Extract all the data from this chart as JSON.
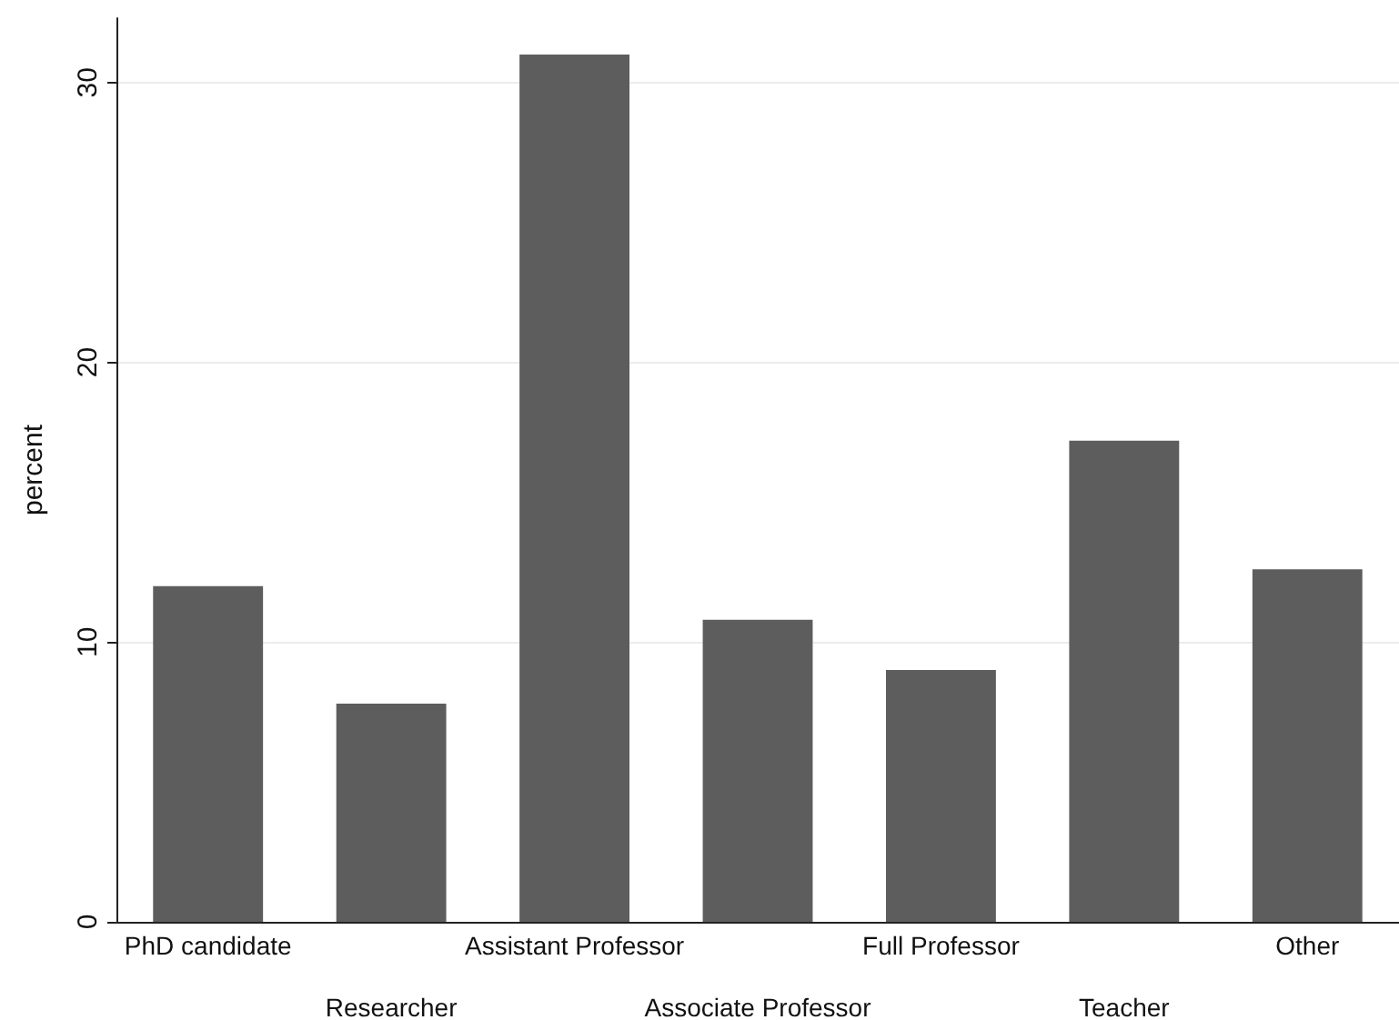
{
  "chart_data": {
    "type": "bar",
    "ylabel": "percent",
    "categories": [
      "PhD candidate",
      "Researcher",
      "Assistant Professor",
      "Associate Professor",
      "Full Professor",
      "Teacher",
      "Other"
    ],
    "values": [
      12.0,
      7.8,
      31.0,
      10.8,
      9.0,
      17.2,
      12.6
    ],
    "color": "#5d5d5d",
    "ylim": [
      0,
      32.3
    ],
    "yticks": [
      0,
      10,
      20,
      30
    ],
    "grid": "y"
  }
}
